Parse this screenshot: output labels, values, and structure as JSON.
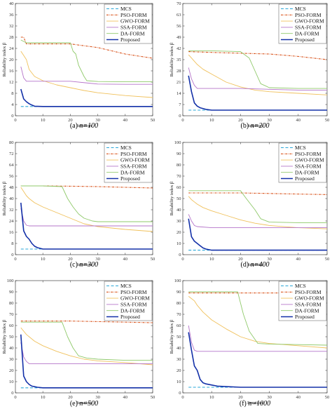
{
  "legend": [
    "MCS",
    "PSO-FORM",
    "GWO-FORM",
    "SSA-FORM",
    "DA-FORM",
    "Proposed"
  ],
  "colors": {
    "MCS": "#2aa7d8",
    "PSO-FORM": "#d9541d",
    "GWO-FORM": "#f0c15c",
    "SSA-FORM": "#b574c9",
    "DA-FORM": "#8fc96a",
    "Proposed": "#1330a8"
  },
  "chart_data": [
    {
      "type": "line",
      "panel": "(a)",
      "caption_prefix": "(a)",
      "caption_n": "n=100",
      "xlabel": "Iteration",
      "ylabel": "Reliability index β",
      "xlim": [
        0,
        50
      ],
      "ylim": [
        0,
        40
      ],
      "xticks": [
        0,
        10,
        20,
        30,
        40,
        50
      ],
      "yticks": [
        0,
        4,
        8,
        12,
        16,
        20,
        24,
        28,
        32,
        36,
        40
      ],
      "legend_position": "top-right",
      "series": [
        {
          "name": "MCS",
          "x": [
            2,
            50
          ],
          "y": [
            3.3,
            3.3
          ]
        },
        {
          "name": "PSO-FORM",
          "x": [
            2,
            3,
            4,
            5,
            10,
            20,
            30,
            40,
            50
          ],
          "y": [
            28,
            28,
            25.6,
            25.6,
            25.6,
            25.6,
            24.3,
            22,
            20.5
          ]
        },
        {
          "name": "GWO-FORM",
          "x": [
            2,
            3,
            4,
            5,
            7,
            10,
            15,
            20,
            25,
            30,
            40,
            50
          ],
          "y": [
            23,
            21.5,
            20,
            16.5,
            14,
            12.5,
            11,
            10,
            9,
            8.2,
            7.2,
            6.5
          ]
        },
        {
          "name": "SSA-FORM",
          "x": [
            2,
            3,
            4,
            10,
            20,
            30,
            40,
            50
          ],
          "y": [
            17.5,
            13.5,
            12.3,
            12.3,
            12.3,
            11.3,
            11.2,
            11.2
          ]
        },
        {
          "name": "DA-FORM",
          "x": [
            2,
            4,
            10,
            20,
            21,
            22,
            23,
            24,
            25,
            26,
            30,
            40,
            50
          ],
          "y": [
            27,
            26,
            26,
            26,
            23,
            22,
            18,
            16,
            14,
            12.5,
            12.2,
            12.1,
            12.1
          ]
        },
        {
          "name": "Proposed",
          "x": [
            2,
            3,
            4,
            5,
            6,
            7,
            10,
            20,
            30,
            40,
            50
          ],
          "y": [
            9.5,
            6,
            5,
            4.3,
            3.8,
            3.4,
            3.3,
            3.3,
            3.3,
            3.3,
            3.3
          ]
        }
      ]
    },
    {
      "type": "line",
      "panel": "(b)",
      "caption_prefix": "(b)",
      "caption_n": "n=200",
      "xlabel": "Iteration",
      "ylabel": "Reliability index β",
      "xlim": [
        0,
        50
      ],
      "ylim": [
        0,
        70
      ],
      "xticks": [
        0,
        10,
        20,
        30,
        40,
        50
      ],
      "yticks": [
        0,
        7,
        14,
        21,
        28,
        35,
        42,
        49,
        56,
        63,
        70
      ],
      "legend_position": "top-right",
      "series": [
        {
          "name": "MCS",
          "x": [
            2,
            50
          ],
          "y": [
            3.5,
            3.5
          ]
        },
        {
          "name": "PSO-FORM",
          "x": [
            2,
            10,
            20,
            30,
            40,
            50
          ],
          "y": [
            40,
            39.5,
            39,
            38.5,
            37,
            35
          ]
        },
        {
          "name": "GWO-FORM",
          "x": [
            2,
            3,
            4,
            5,
            7,
            10,
            15,
            20,
            25,
            30,
            40,
            50
          ],
          "y": [
            38,
            36,
            34,
            32,
            29,
            26,
            21,
            18,
            16,
            15,
            14,
            13
          ]
        },
        {
          "name": "SSA-FORM",
          "x": [
            2,
            3,
            4,
            5,
            10,
            20,
            30,
            40,
            50
          ],
          "y": [
            30,
            23,
            19,
            17,
            17,
            17,
            16.5,
            16,
            16
          ]
        },
        {
          "name": "DA-FORM",
          "x": [
            2,
            10,
            20,
            23,
            25,
            27,
            30,
            40,
            50
          ],
          "y": [
            40.5,
            40.5,
            40,
            36,
            28,
            20,
            17.5,
            17,
            17
          ]
        },
        {
          "name": "Proposed",
          "x": [
            2,
            3,
            4,
            5,
            6,
            8,
            10,
            20,
            30,
            40,
            50
          ],
          "y": [
            25,
            15,
            8,
            6,
            5,
            4,
            3.5,
            3.5,
            3.5,
            3.5,
            3.5
          ]
        }
      ]
    },
    {
      "type": "line",
      "panel": "(c)",
      "caption_prefix": "(c)",
      "caption_n": "n=300",
      "xlabel": "Iteration",
      "ylabel": "Reliability index β",
      "xlim": [
        0,
        50
      ],
      "ylim": [
        0,
        80
      ],
      "xticks": [
        0,
        10,
        20,
        30,
        40,
        50
      ],
      "yticks": [
        0,
        8,
        16,
        24,
        32,
        40,
        48,
        56,
        64,
        72,
        80
      ],
      "legend_position": "top-right",
      "series": [
        {
          "name": "MCS",
          "x": [
            2,
            50
          ],
          "y": [
            4,
            4
          ]
        },
        {
          "name": "PSO-FORM",
          "x": [
            2,
            10,
            20,
            30,
            40,
            50
          ],
          "y": [
            49,
            49,
            48.8,
            48.5,
            48,
            47.5
          ]
        },
        {
          "name": "GWO-FORM",
          "x": [
            2,
            3,
            4,
            5,
            7,
            10,
            15,
            20,
            25,
            30,
            40,
            50
          ],
          "y": [
            48,
            45,
            42,
            40,
            37,
            34,
            30,
            26,
            22,
            20,
            18,
            16.5
          ]
        },
        {
          "name": "SSA-FORM",
          "x": [
            2,
            3,
            4,
            5,
            10,
            20,
            30,
            40,
            50
          ],
          "y": [
            33,
            24,
            21,
            20.5,
            20.5,
            20.5,
            20.5,
            20.5,
            20.5
          ]
        },
        {
          "name": "DA-FORM",
          "x": [
            2,
            10,
            17,
            19,
            21,
            23,
            25,
            28,
            30,
            40,
            50
          ],
          "y": [
            49,
            49,
            48.5,
            40,
            34,
            29,
            26,
            24,
            23.5,
            23.5,
            23.5
          ]
        },
        {
          "name": "Proposed",
          "x": [
            2,
            3,
            4,
            5,
            6,
            7,
            8,
            10,
            20,
            30,
            40,
            50
          ],
          "y": [
            37,
            17,
            13,
            11,
            8,
            6,
            5,
            4,
            4,
            4,
            4,
            4
          ]
        }
      ]
    },
    {
      "type": "line",
      "panel": "(d)",
      "caption_prefix": "(d)",
      "caption_n": "n=400",
      "xlabel": "Iteration",
      "ylabel": "Reliability index β",
      "xlim": [
        0,
        50
      ],
      "ylim": [
        0,
        100
      ],
      "xticks": [
        0,
        10,
        20,
        30,
        40,
        50
      ],
      "yticks": [
        0,
        10,
        20,
        30,
        40,
        50,
        60,
        70,
        80,
        90,
        100
      ],
      "legend_position": "top-right",
      "series": [
        {
          "name": "MCS",
          "x": [
            2,
            50
          ],
          "y": [
            4,
            4
          ]
        },
        {
          "name": "PSO-FORM",
          "x": [
            2,
            10,
            20,
            30,
            40,
            50
          ],
          "y": [
            55,
            55,
            55,
            54.5,
            54,
            53.5
          ]
        },
        {
          "name": "GWO-FORM",
          "x": [
            2,
            3,
            4,
            5,
            7,
            10,
            15,
            20,
            25,
            30,
            40,
            50
          ],
          "y": [
            52,
            49,
            47,
            45,
            42,
            39,
            35,
            31,
            28,
            26,
            24,
            23
          ]
        },
        {
          "name": "SSA-FORM",
          "x": [
            2,
            3,
            4,
            5,
            10,
            20,
            30,
            40,
            50
          ],
          "y": [
            36,
            30,
            26,
            25,
            24,
            24,
            24,
            24,
            24
          ]
        },
        {
          "name": "DA-FORM",
          "x": [
            2,
            10,
            20,
            22,
            25,
            27,
            30,
            40,
            50
          ],
          "y": [
            57,
            57,
            57,
            50,
            40,
            32,
            29,
            28.5,
            28.5
          ]
        },
        {
          "name": "Proposed",
          "x": [
            2,
            3,
            4,
            5,
            6,
            7,
            8,
            10,
            20,
            30,
            40,
            50
          ],
          "y": [
            32,
            16,
            12,
            10,
            8,
            6,
            5,
            4,
            4,
            4,
            4,
            4
          ]
        }
      ]
    },
    {
      "type": "line",
      "panel": "(e)",
      "caption_prefix": "(e)",
      "caption_n": "n=500",
      "xlabel": "Iteration",
      "ylabel": "Reliability index β",
      "xlim": [
        0,
        50
      ],
      "ylim": [
        0,
        100
      ],
      "xticks": [
        0,
        10,
        20,
        30,
        40,
        50
      ],
      "yticks": [
        0,
        10,
        20,
        30,
        40,
        50,
        60,
        70,
        80,
        90,
        100
      ],
      "legend_position": "top-right",
      "series": [
        {
          "name": "MCS",
          "x": [
            2,
            50
          ],
          "y": [
            4.5,
            4.5
          ]
        },
        {
          "name": "PSO-FORM",
          "x": [
            2,
            10,
            20,
            30,
            40,
            50
          ],
          "y": [
            64,
            64,
            64,
            63.5,
            63,
            62.5
          ]
        },
        {
          "name": "GWO-FORM",
          "x": [
            2,
            3,
            4,
            5,
            7,
            10,
            15,
            20,
            25,
            30,
            40,
            50
          ],
          "y": [
            58,
            55,
            52,
            50,
            46,
            42,
            37,
            33,
            30,
            28.5,
            27,
            25
          ]
        },
        {
          "name": "SSA-FORM",
          "x": [
            2,
            3,
            4,
            5,
            10,
            20,
            30,
            40,
            50
          ],
          "y": [
            45,
            32,
            28,
            26,
            26,
            26,
            26,
            26,
            26
          ]
        },
        {
          "name": "DA-FORM",
          "x": [
            2,
            10,
            17,
            19,
            21,
            23,
            26,
            30,
            40,
            50
          ],
          "y": [
            63,
            63,
            63,
            50,
            40,
            33,
            31,
            30,
            29,
            29
          ]
        },
        {
          "name": "Proposed",
          "x": [
            2,
            3,
            4,
            5,
            6,
            7,
            8,
            10,
            20,
            30,
            40,
            50
          ],
          "y": [
            52,
            15,
            10,
            7.5,
            6,
            5.5,
            5,
            4.5,
            4.5,
            4.5,
            4.5,
            4.5
          ]
        }
      ]
    },
    {
      "type": "line",
      "panel": "(f)",
      "caption_prefix": "(f)",
      "caption_n": "n=1000",
      "xlabel": "Iteration",
      "ylabel": "Reliability index β",
      "xlim": [
        0,
        50
      ],
      "ylim": [
        0,
        100
      ],
      "xticks": [
        0,
        10,
        20,
        30,
        40,
        50
      ],
      "yticks": [
        0,
        10,
        20,
        30,
        40,
        50,
        60,
        70,
        80,
        90,
        100
      ],
      "legend_position": "top-right",
      "series": [
        {
          "name": "MCS",
          "x": [
            2,
            50
          ],
          "y": [
            5,
            5
          ]
        },
        {
          "name": "PSO-FORM",
          "x": [
            2,
            10,
            20,
            30,
            40,
            50
          ],
          "y": [
            89,
            89,
            89,
            89,
            89,
            89
          ]
        },
        {
          "name": "GWO-FORM",
          "x": [
            2,
            3,
            4,
            5,
            7,
            10,
            15,
            20,
            25,
            30,
            40,
            50
          ],
          "y": [
            86,
            84,
            82,
            78,
            72,
            65,
            57,
            50,
            46,
            44,
            42,
            40
          ]
        },
        {
          "name": "SSA-FORM",
          "x": [
            2,
            3,
            4,
            5,
            10,
            20,
            30,
            40,
            50
          ],
          "y": [
            60,
            45,
            38,
            37,
            37,
            37,
            37,
            37,
            37
          ]
        },
        {
          "name": "DA-FORM",
          "x": [
            2,
            10,
            19,
            21,
            23,
            26,
            30,
            40,
            50
          ],
          "y": [
            90,
            90,
            90,
            70,
            55,
            44,
            43.5,
            43,
            42.5
          ]
        },
        {
          "name": "Proposed",
          "x": [
            2,
            3,
            4,
            5,
            6,
            7,
            8,
            10,
            12,
            20,
            30,
            40,
            50
          ],
          "y": [
            54,
            38,
            24,
            20,
            12,
            9,
            8,
            7,
            6,
            5,
            5,
            5,
            5
          ]
        }
      ]
    }
  ]
}
